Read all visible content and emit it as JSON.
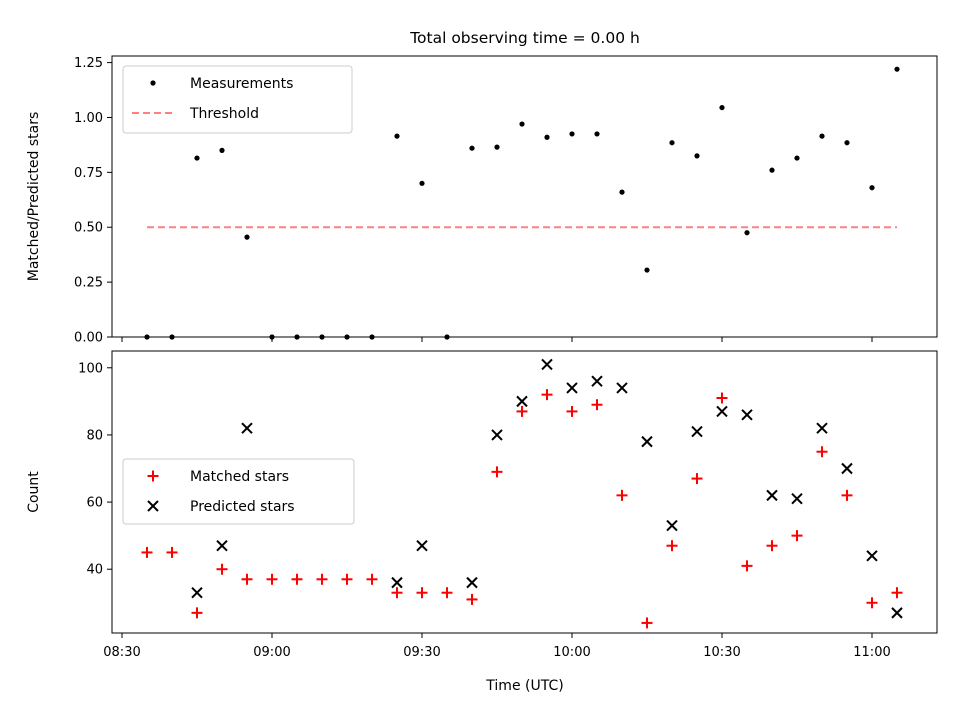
{
  "figure": {
    "title": "Total observing time = 0.00 h",
    "xlabel": "Time (UTC)",
    "xticks": [
      "08:30",
      "09:00",
      "09:30",
      "10:00",
      "10:30",
      "11:00"
    ]
  },
  "colors": {
    "measurement": "#000000",
    "threshold": "#ff8080",
    "matched": "#ff0000",
    "predicted": "#000000"
  },
  "chart_data": [
    {
      "type": "scatter",
      "ylabel": "Matched/Predicted stars",
      "xlim": [
        "08:28",
        "11:13"
      ],
      "ylim": [
        0,
        1.28
      ],
      "yticks": [
        "0.00",
        "0.25",
        "0.50",
        "0.75",
        "1.00",
        "1.25"
      ],
      "legend_position": "top-left",
      "series": [
        {
          "name": "Measurements",
          "marker": "dot",
          "points": [
            [
              "08:35",
              0.0
            ],
            [
              "08:40",
              0.0
            ],
            [
              "08:45",
              0.815
            ],
            [
              "08:50",
              0.85
            ],
            [
              "08:55",
              0.455
            ],
            [
              "09:00",
              0.0
            ],
            [
              "09:05",
              0.0
            ],
            [
              "09:10",
              0.0
            ],
            [
              "09:15",
              0.0
            ],
            [
              "09:20",
              0.0
            ],
            [
              "09:25",
              0.915
            ],
            [
              "09:30",
              0.7
            ],
            [
              "09:35",
              0.0
            ],
            [
              "09:40",
              0.86
            ],
            [
              "09:45",
              0.865
            ],
            [
              "09:50",
              0.97
            ],
            [
              "09:55",
              0.91
            ],
            [
              "10:00",
              0.925
            ],
            [
              "10:05",
              0.925
            ],
            [
              "10:10",
              0.66
            ],
            [
              "10:15",
              0.305
            ],
            [
              "10:20",
              0.885
            ],
            [
              "10:25",
              0.825
            ],
            [
              "10:30",
              1.045
            ],
            [
              "10:35",
              0.475
            ],
            [
              "10:40",
              0.76
            ],
            [
              "10:45",
              0.815
            ],
            [
              "10:50",
              0.915
            ],
            [
              "10:55",
              0.885
            ],
            [
              "11:00",
              0.68
            ],
            [
              "11:05",
              1.22
            ]
          ]
        },
        {
          "name": "Threshold",
          "line": "dashed",
          "points": [
            [
              "08:35",
              0.5
            ],
            [
              "11:05",
              0.5
            ]
          ]
        }
      ]
    },
    {
      "type": "scatter",
      "ylabel": "Count",
      "xlim": [
        "08:28",
        "11:13"
      ],
      "ylim": [
        21,
        105
      ],
      "yticks": [
        "40",
        "60",
        "80",
        "100"
      ],
      "legend_position": "center-left",
      "series": [
        {
          "name": "Matched stars",
          "marker": "plus",
          "points": [
            [
              "08:35",
              45
            ],
            [
              "08:40",
              45
            ],
            [
              "08:45",
              27
            ],
            [
              "08:50",
              40
            ],
            [
              "08:55",
              37
            ],
            [
              "09:00",
              37
            ],
            [
              "09:05",
              37
            ],
            [
              "09:10",
              37
            ],
            [
              "09:15",
              37
            ],
            [
              "09:20",
              37
            ],
            [
              "09:25",
              33
            ],
            [
              "09:30",
              33
            ],
            [
              "09:35",
              33
            ],
            [
              "09:40",
              31
            ],
            [
              "09:45",
              69
            ],
            [
              "09:50",
              87
            ],
            [
              "09:55",
              92
            ],
            [
              "10:00",
              87
            ],
            [
              "10:05",
              89
            ],
            [
              "10:10",
              62
            ],
            [
              "10:15",
              24
            ],
            [
              "10:20",
              47
            ],
            [
              "10:25",
              67
            ],
            [
              "10:30",
              91
            ],
            [
              "10:35",
              41
            ],
            [
              "10:40",
              47
            ],
            [
              "10:45",
              50
            ],
            [
              "10:50",
              75
            ],
            [
              "10:55",
              62
            ],
            [
              "11:00",
              30
            ],
            [
              "11:05",
              33
            ]
          ]
        },
        {
          "name": "Predicted stars",
          "marker": "x",
          "points": [
            [
              "08:45",
              33
            ],
            [
              "08:50",
              47
            ],
            [
              "08:55",
              82
            ],
            [
              "09:25",
              36
            ],
            [
              "09:30",
              47
            ],
            [
              "09:40",
              36
            ],
            [
              "09:45",
              80
            ],
            [
              "09:50",
              90
            ],
            [
              "09:55",
              101
            ],
            [
              "10:00",
              94
            ],
            [
              "10:05",
              96
            ],
            [
              "10:10",
              94
            ],
            [
              "10:15",
              78
            ],
            [
              "10:20",
              53
            ],
            [
              "10:25",
              81
            ],
            [
              "10:30",
              87
            ],
            [
              "10:35",
              86
            ],
            [
              "10:40",
              62
            ],
            [
              "10:45",
              61
            ],
            [
              "10:50",
              82
            ],
            [
              "10:55",
              70
            ],
            [
              "11:00",
              44
            ],
            [
              "11:05",
              27
            ]
          ]
        }
      ]
    }
  ]
}
